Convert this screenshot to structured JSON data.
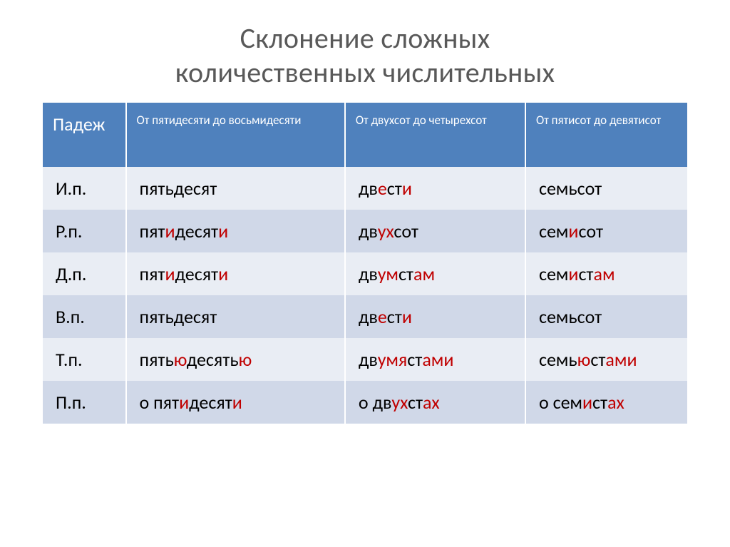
{
  "title_line1": "Склонение сложных",
  "title_line2": "количественных числительных",
  "header": {
    "c0": "Падеж",
    "c1": "От пятидесяти до восьмидесяти",
    "c2": "От  двухсот до четырехсот",
    "c3": "От пятисот до девятисот"
  },
  "rows": [
    {
      "case": "И.п.",
      "w1": [
        {
          "t": "пятьдесят",
          "h": false
        }
      ],
      "w2": [
        {
          "t": "дв",
          "h": false
        },
        {
          "t": "е",
          "h": true
        },
        {
          "t": "ст",
          "h": false
        },
        {
          "t": "и",
          "h": true
        }
      ],
      "w3": [
        {
          "t": "семьсот",
          "h": false
        }
      ]
    },
    {
      "case": "Р.п.",
      "w1": [
        {
          "t": "пят",
          "h": false
        },
        {
          "t": "и",
          "h": true
        },
        {
          "t": "десят",
          "h": false
        },
        {
          "t": "и",
          "h": true
        }
      ],
      "w2": [
        {
          "t": "дв",
          "h": false
        },
        {
          "t": "ух",
          "h": true
        },
        {
          "t": "сот",
          "h": false
        }
      ],
      "w3": [
        {
          "t": "сем",
          "h": false
        },
        {
          "t": "и",
          "h": true
        },
        {
          "t": "сот",
          "h": false
        }
      ]
    },
    {
      "case": "Д.п.",
      "w1": [
        {
          "t": "пят",
          "h": false
        },
        {
          "t": "и",
          "h": true
        },
        {
          "t": "десят",
          "h": false
        },
        {
          "t": "и",
          "h": true
        }
      ],
      "w2": [
        {
          "t": "дв",
          "h": false
        },
        {
          "t": "ум",
          "h": true
        },
        {
          "t": "ст",
          "h": false
        },
        {
          "t": "ам",
          "h": true
        }
      ],
      "w3": [
        {
          "t": "сем",
          "h": false
        },
        {
          "t": "и",
          "h": true
        },
        {
          "t": "ст",
          "h": false
        },
        {
          "t": "ам",
          "h": true
        }
      ]
    },
    {
      "case": "В.п.",
      "w1": [
        {
          "t": "пятьдесят",
          "h": false
        }
      ],
      "w2": [
        {
          "t": "дв",
          "h": false
        },
        {
          "t": "е",
          "h": true
        },
        {
          "t": "ст",
          "h": false
        },
        {
          "t": "и",
          "h": true
        }
      ],
      "w3": [
        {
          "t": "семьсот",
          "h": false
        }
      ]
    },
    {
      "case": "Т.п.",
      "w1": [
        {
          "t": "пять",
          "h": false
        },
        {
          "t": "ю",
          "h": true
        },
        {
          "t": "десять",
          "h": false
        },
        {
          "t": "ю",
          "h": true
        }
      ],
      "w2": [
        {
          "t": "дв",
          "h": false
        },
        {
          "t": "умя",
          "h": true
        },
        {
          "t": "ст",
          "h": false
        },
        {
          "t": "ами",
          "h": true
        }
      ],
      "w3": [
        {
          "t": "семь",
          "h": false
        },
        {
          "t": "ю",
          "h": true
        },
        {
          "t": "ст",
          "h": false
        },
        {
          "t": "ами",
          "h": true
        }
      ]
    },
    {
      "case": "П.п.",
      "w1": [
        {
          "t": "о пят",
          "h": false
        },
        {
          "t": "и",
          "h": true
        },
        {
          "t": "десят",
          "h": false
        },
        {
          "t": "и",
          "h": true
        }
      ],
      "w2": [
        {
          "t": "о дв",
          "h": false
        },
        {
          "t": "ух",
          "h": true
        },
        {
          "t": "ст",
          "h": false
        },
        {
          "t": "ах",
          "h": true
        }
      ],
      "w3": [
        {
          "t": "о сем",
          "h": false
        },
        {
          "t": "и",
          "h": true
        },
        {
          "t": "ст",
          "h": false
        },
        {
          "t": "ах",
          "h": true
        }
      ]
    }
  ],
  "colors": {
    "header_bg": "#4f81bd",
    "light_row": "#e9edf4",
    "dark_row": "#d0d8e8",
    "title_color": "#595959",
    "highlight": "#c00000"
  }
}
